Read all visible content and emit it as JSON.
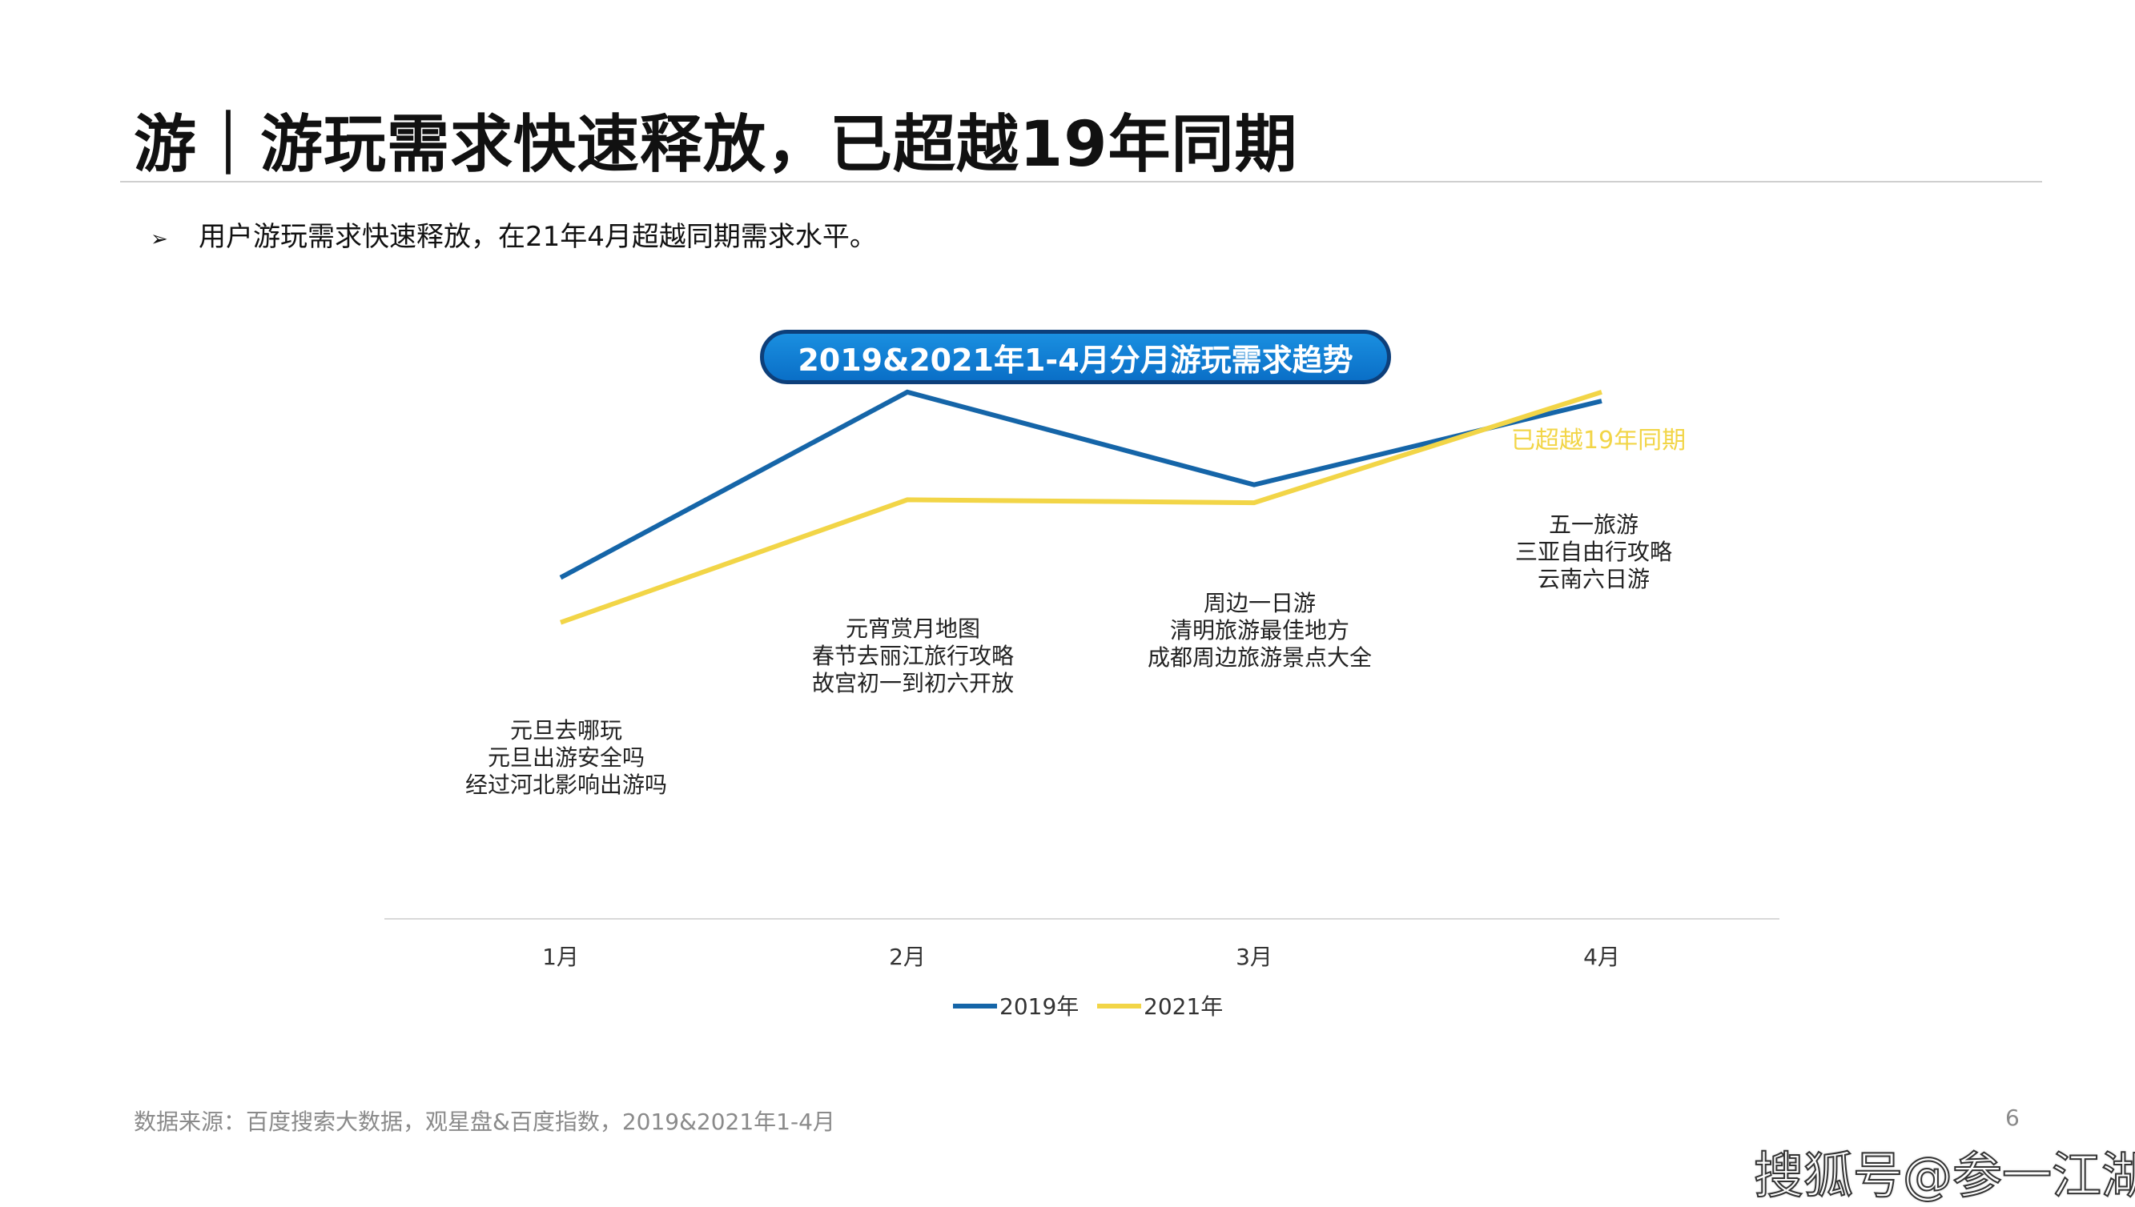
{
  "header": {
    "title": "游｜游玩需求快速释放，已超越19年同期",
    "bullet_marker": "➢",
    "bullet_text": "用户游玩需求快速释放，在21年4月超越同期需求水平。"
  },
  "chart_data": {
    "type": "line",
    "title": "2019&2021年1-4月分月游玩需求趋势",
    "categories": [
      "1月",
      "2月",
      "3月",
      "4月"
    ],
    "series": [
      {
        "name": "2019年",
        "color": "#1565a8",
        "values": [
          57,
          88,
          72.5,
          86.5
        ]
      },
      {
        "name": "2021年",
        "color": "#f2d547",
        "values": [
          49.5,
          70,
          69.5,
          88
        ]
      }
    ],
    "ylim": [
      0,
      100
    ],
    "grid": false,
    "legend_position": "bottom-center",
    "annotations": [
      {
        "category": "1月",
        "lines": [
          "元旦去哪玩",
          "元旦出游安全吗",
          "经过河北影响出游吗"
        ]
      },
      {
        "category": "2月",
        "lines": [
          "元宵赏月地图",
          "春节去丽江旅行攻略",
          "故宫初一到初六开放"
        ]
      },
      {
        "category": "3月",
        "lines": [
          "周边一日游",
          "清明旅游最佳地方",
          "成都周边旅游景点大全"
        ]
      },
      {
        "category": "4月",
        "lines": [
          "五一旅游",
          "三亚自由行攻略",
          "云南六日游"
        ]
      }
    ],
    "highlight": {
      "text": "已超越19年同期",
      "color": "#f2d547"
    }
  },
  "footer": {
    "source": "数据来源：百度搜索大数据，观星盘&百度指数，2019&2021年1-4月",
    "page_number": "6"
  },
  "watermark": "搜狐号@参一江湖"
}
